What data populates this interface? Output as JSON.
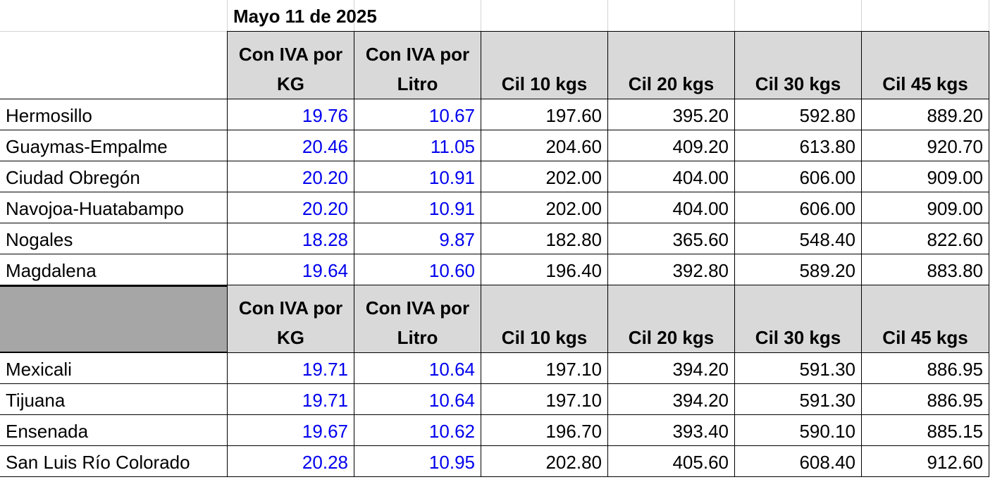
{
  "title": "Mayo 11 de 2025",
  "tables": [
    {
      "headers": [
        "Con IVA por KG",
        "Con IVA por Litro",
        "Cil 10 kgs",
        "Cil 20 kgs",
        "Cil 30 kgs",
        "Cil 45 kgs"
      ],
      "rows": [
        [
          "Hermosillo",
          "19.76",
          "10.67",
          "197.60",
          "395.20",
          "592.80",
          "889.20"
        ],
        [
          "Guaymas-Empalme",
          "20.46",
          "11.05",
          "204.60",
          "409.20",
          "613.80",
          "920.70"
        ],
        [
          "Ciudad Obregón",
          "20.20",
          "10.91",
          "202.00",
          "404.00",
          "606.00",
          "909.00"
        ],
        [
          "Navojoa-Huatabampo",
          "20.20",
          "10.91",
          "202.00",
          "404.00",
          "606.00",
          "909.00"
        ],
        [
          "Nogales",
          "18.28",
          "9.87",
          "182.80",
          "365.60",
          "548.40",
          "822.60"
        ],
        [
          "Magdalena",
          "19.64",
          "10.60",
          "196.40",
          "392.80",
          "589.20",
          "883.80"
        ]
      ]
    },
    {
      "headers": [
        "Con IVA por KG",
        "Con IVA por Litro",
        "Cil 10 kgs",
        "Cil 20 kgs",
        "Cil 30 kgs",
        "Cil 45 kgs"
      ],
      "rows": [
        [
          "Mexicali",
          "19.71",
          "10.64",
          "197.10",
          "394.20",
          "591.30",
          "886.95"
        ],
        [
          "Tijuana",
          "19.71",
          "10.64",
          "197.10",
          "394.20",
          "591.30",
          "886.95"
        ],
        [
          "Ensenada",
          "19.67",
          "10.62",
          "196.70",
          "393.40",
          "590.10",
          "885.15"
        ],
        [
          "San Luis Río Colorado",
          "20.28",
          "10.95",
          "202.80",
          "405.60",
          "608.40",
          "912.60"
        ]
      ]
    }
  ]
}
